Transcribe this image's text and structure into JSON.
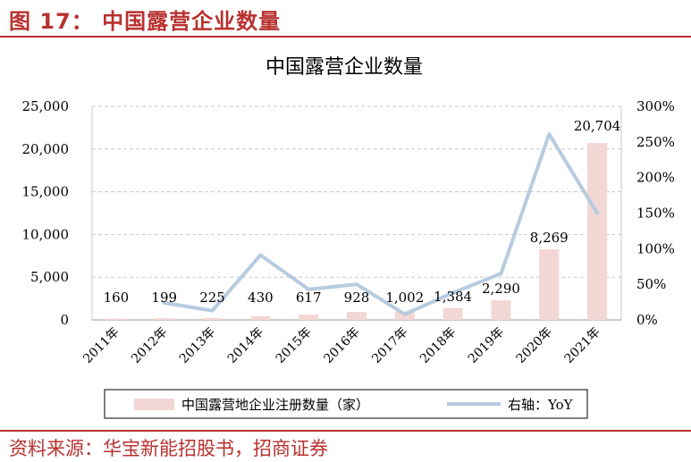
{
  "figure": {
    "title": "图 17： 中国露营企业数量",
    "source": "资料来源：华宝新能招股书，招商证券"
  },
  "chart_data": {
    "type": "bar",
    "title": "中国露营企业数量",
    "categories": [
      "2011年",
      "2012年",
      "2013年",
      "2014年",
      "2015年",
      "2016年",
      "2017年",
      "2018年",
      "2019年",
      "2020年",
      "2021年"
    ],
    "series": [
      {
        "name": "中国露营地企业注册数量（家）",
        "type": "bar",
        "axis": "left",
        "values": [
          160,
          199,
          225,
          430,
          617,
          928,
          1002,
          1384,
          2290,
          8269,
          20704
        ],
        "labels": [
          "160",
          "199",
          "225",
          "430",
          "617",
          "928",
          "1,002",
          "1,384",
          "2,290",
          "8,269",
          "20,704"
        ],
        "color": "#f2d7d5"
      },
      {
        "name": "右轴：YoY",
        "type": "line",
        "axis": "right",
        "values": [
          null,
          24,
          13,
          91,
          43,
          50,
          8,
          38,
          65,
          261,
          150
        ],
        "color": "#b7cbe0"
      }
    ],
    "y_left": {
      "range": [
        0,
        25000
      ],
      "ticks": [
        "0",
        "5,000",
        "10,000",
        "15,000",
        "20,000",
        "25,000"
      ]
    },
    "y_right": {
      "range": [
        0,
        300
      ],
      "ticks": [
        "0%",
        "50%",
        "100%",
        "150%",
        "200%",
        "250%",
        "300%"
      ]
    },
    "grid": true,
    "legend": "bottom"
  }
}
